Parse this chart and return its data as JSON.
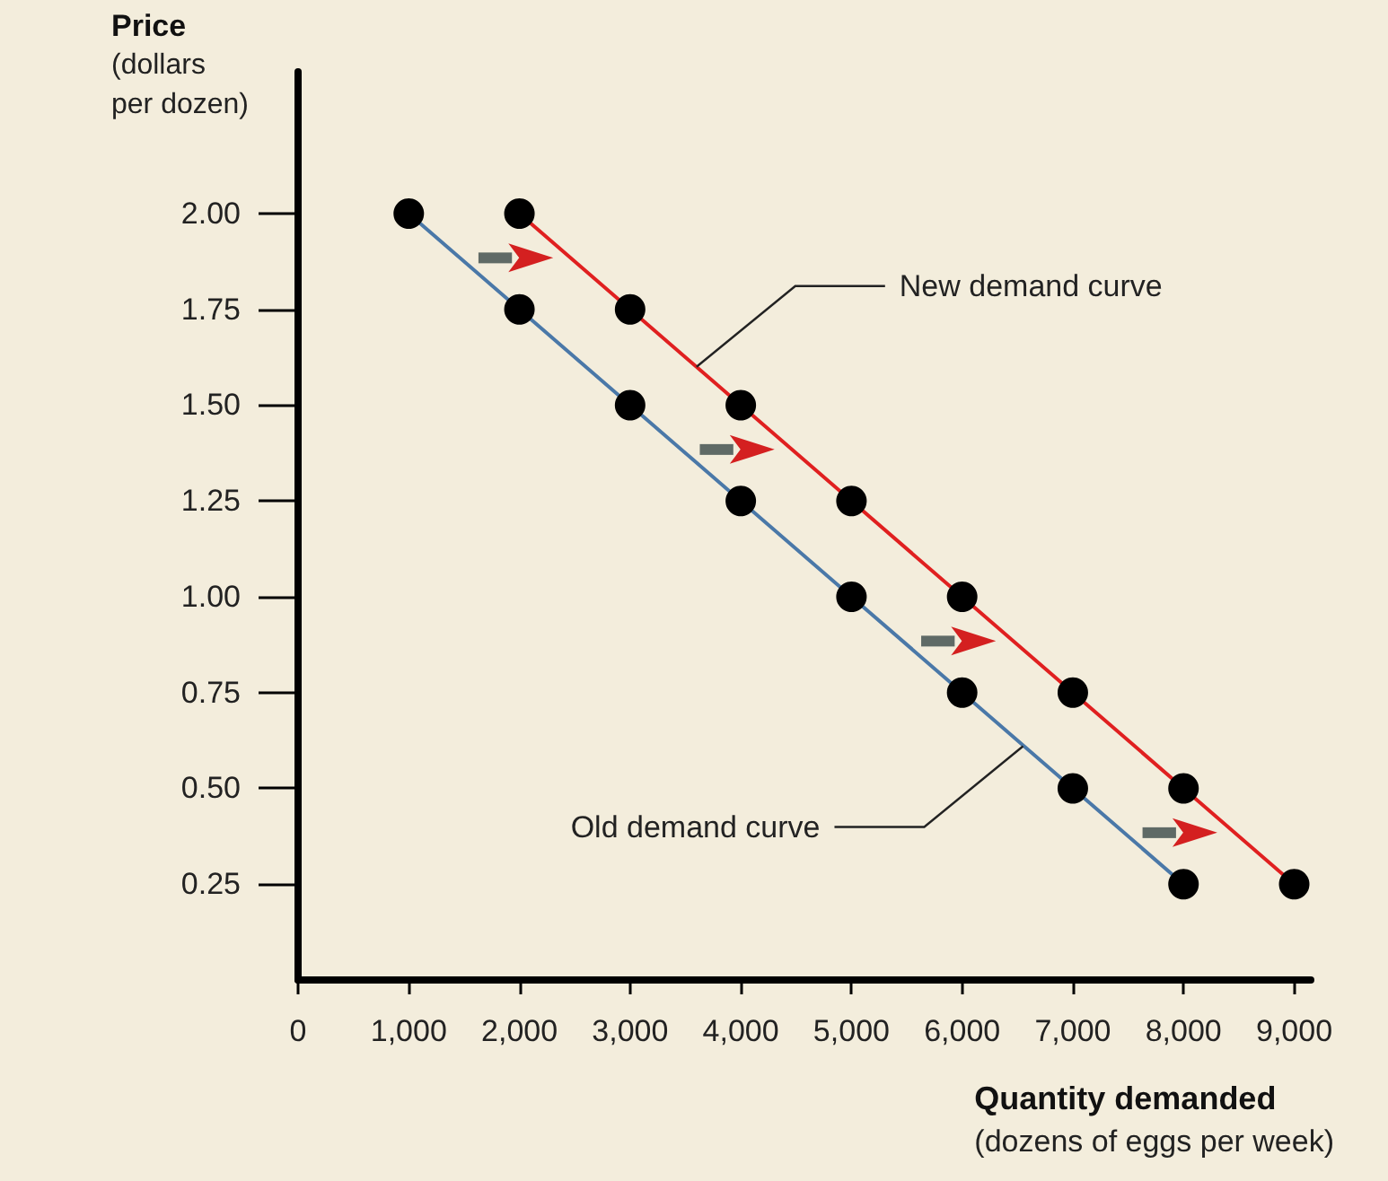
{
  "chart_data": {
    "type": "line",
    "xlabel": "Quantity demanded\n(dozens of eggs per week)",
    "ylabel": "Price\n(dollars\nper dozen)",
    "series": [
      {
        "color": "#4a78a8",
        "x": [
          1000,
          2000,
          3000,
          4000,
          5000,
          6000,
          7000,
          8000
        ],
        "values": [
          2.0,
          1.75,
          1.5,
          1.25,
          1.0,
          0.75,
          0.5,
          0.25
        ]
      },
      {
        "color": "#e02020",
        "x": [
          2000,
          3000,
          4000,
          5000,
          6000,
          7000,
          8000,
          9000
        ],
        "values": [
          2.0,
          1.75,
          1.5,
          1.25,
          1.0,
          0.75,
          0.5,
          0.25
        ]
      }
    ],
    "xlim": [
      0,
      9150
    ],
    "xticks": [
      0,
      {
        "value": 1000,
        "label": "1,000"
      },
      {
        "value": 2000,
        "label": "2,000"
      },
      {
        "value": 3000,
        "label": "3,000"
      },
      {
        "value": 4000,
        "label": "4,000"
      },
      {
        "value": 5000,
        "label": "5,000"
      },
      {
        "value": 6000,
        "label": "6,000"
      },
      {
        "value": 7000,
        "label": "7,000"
      },
      {
        "value": 8000,
        "label": "8,000"
      },
      {
        "value": 9000,
        "label": "9,000"
      }
    ],
    "ylim": [
      0,
      2.37
    ],
    "yticks": [
      {
        "value": 0.25,
        "label": "0.25"
      },
      {
        "value": 0.5,
        "label": "0.50"
      },
      {
        "value": 0.75,
        "label": "0.75"
      },
      {
        "value": 1,
        "label": "1.00"
      },
      {
        "value": 1.25,
        "label": "1.25"
      },
      {
        "value": 1.5,
        "label": "1.50"
      },
      {
        "value": 1.75,
        "label": "1.75"
      },
      {
        "value": 2,
        "label": "2.00"
      }
    ],
    "annotations": [
      {
        "text": "New demand curve",
        "x": 3600,
        "y": 1.6
      },
      {
        "text": "Old demand curve",
        "x": 6550,
        "y": 0.61
      }
    ],
    "marker": "circle",
    "line_style": "solid"
  }
}
